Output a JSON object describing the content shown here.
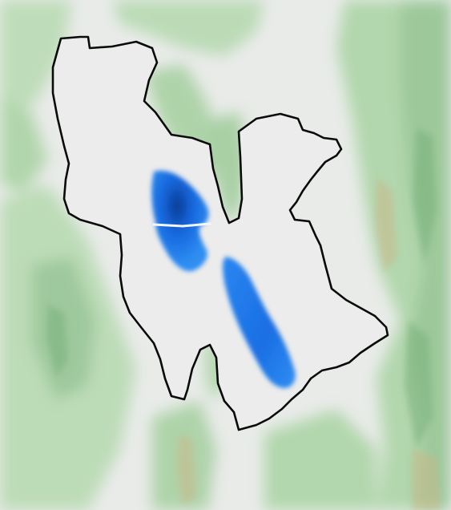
{
  "map": {
    "type": "shaded-relief",
    "features": {
      "terrain": "terrain-relief",
      "basin": "lake-basin-outline",
      "lake_north": "lake-water-north",
      "lake_south": "lake-water-south",
      "causeway": "causeway-line"
    },
    "colors": {
      "background": "#e9ebe9",
      "relief_green": "#a9d3a3",
      "relief_dark": "#78b07a",
      "ridge_tan": "#c9b98a",
      "basin_fill": "#ececec",
      "outline": "#0a0a0a",
      "water_light": "#2f8ef2",
      "water_mid": "#1667dd",
      "water_deep": "#0b3d96"
    }
  }
}
